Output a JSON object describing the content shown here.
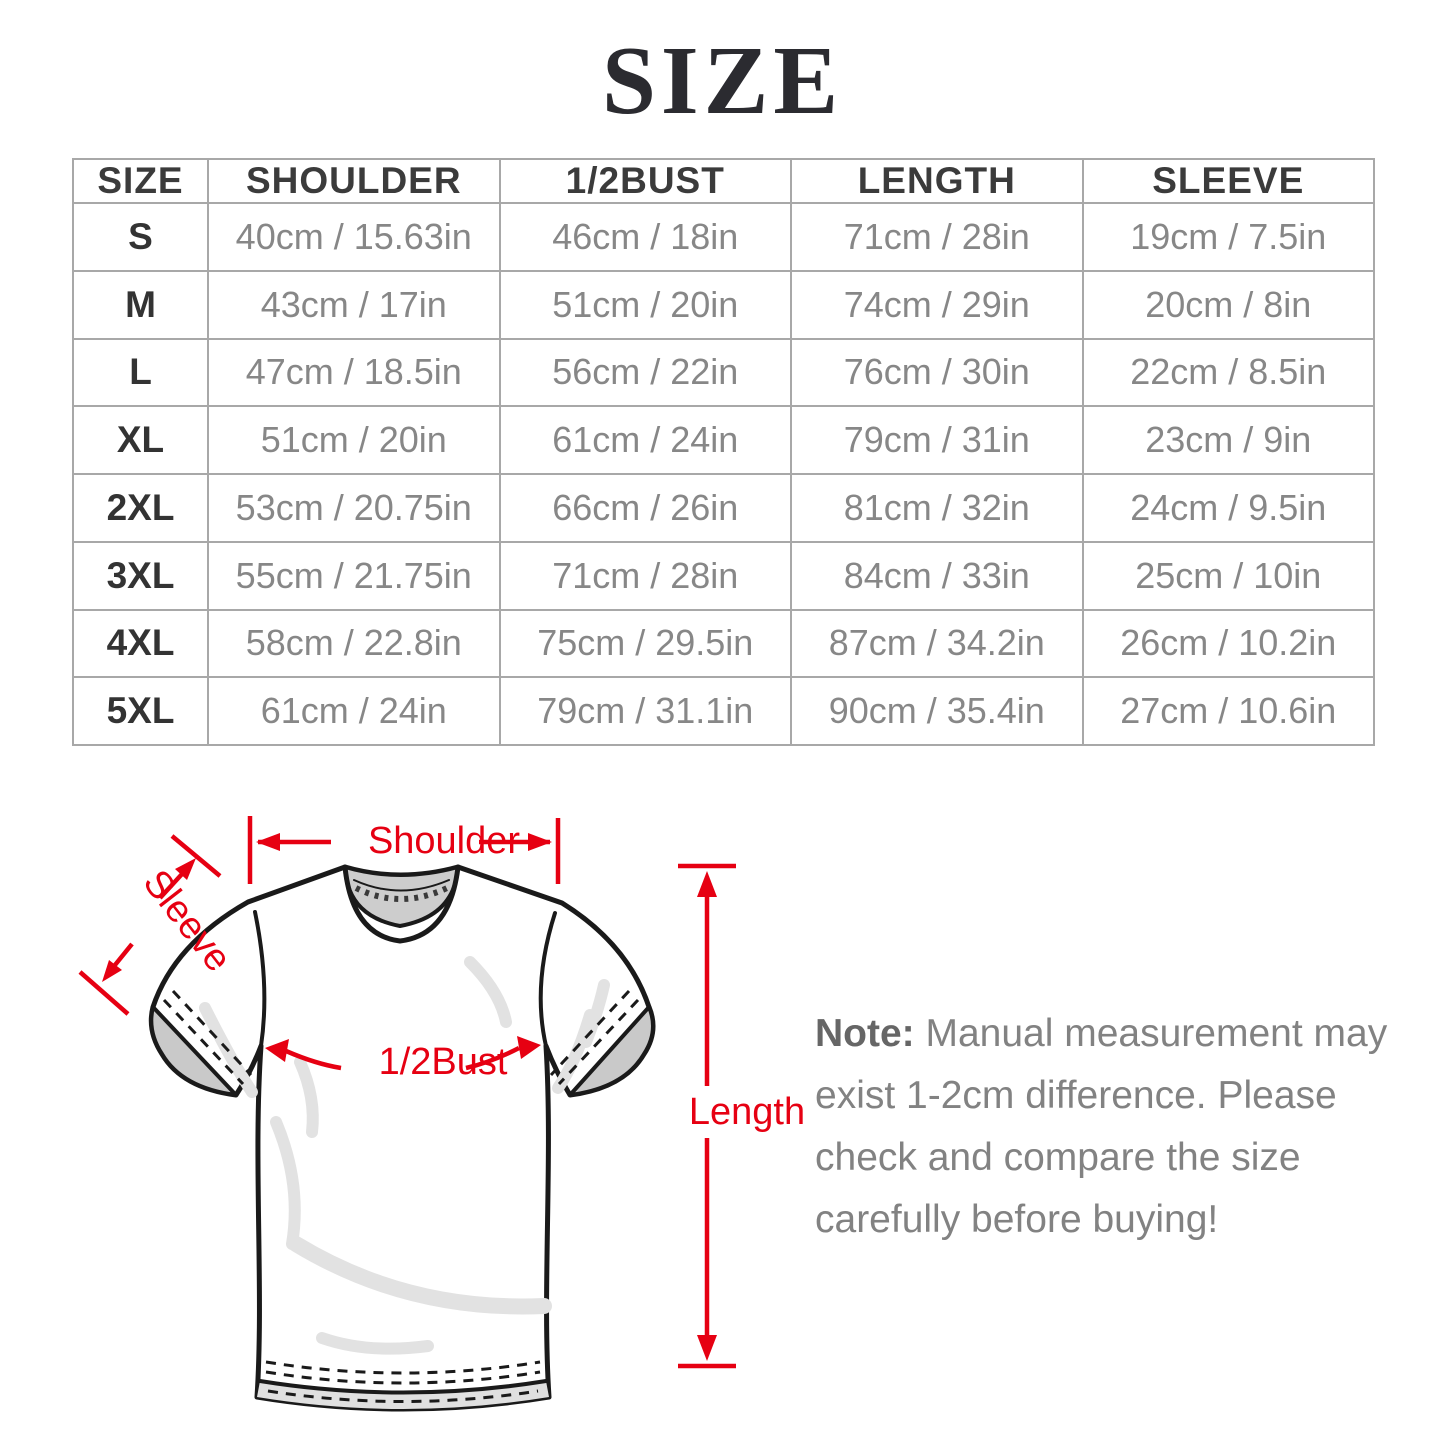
{
  "title": "SIZE",
  "table": {
    "headers": [
      "SIZE",
      "SHOULDER",
      "1/2BUST",
      "LENGTH",
      "SLEEVE"
    ],
    "rows": [
      [
        "S",
        "40cm / 15.63in",
        "46cm / 18in",
        "71cm / 28in",
        "19cm / 7.5in"
      ],
      [
        "M",
        "43cm / 17in",
        "51cm / 20in",
        "74cm / 29in",
        "20cm / 8in"
      ],
      [
        "L",
        "47cm / 18.5in",
        "56cm / 22in",
        "76cm / 30in",
        "22cm / 8.5in"
      ],
      [
        "XL",
        "51cm / 20in",
        "61cm / 24in",
        "79cm / 31in",
        "23cm / 9in"
      ],
      [
        "2XL",
        "53cm / 20.75in",
        "66cm / 26in",
        "81cm / 32in",
        "24cm / 9.5in"
      ],
      [
        "3XL",
        "55cm / 21.75in",
        "71cm / 28in",
        "84cm / 33in",
        "25cm / 10in"
      ],
      [
        "4XL",
        "58cm / 22.8in",
        "75cm / 29.5in",
        "87cm / 34.2in",
        "26cm / 10.2in"
      ],
      [
        "5XL",
        "61cm / 24in",
        "79cm / 31.1in",
        "90cm / 35.4in",
        "27cm / 10.6in"
      ]
    ]
  },
  "diagram": {
    "labels": {
      "shoulder": "Shoulder",
      "sleeve": "Sleeve",
      "bust": "1/2Bust",
      "length": "Length"
    },
    "accent_color": "#e60012"
  },
  "note": {
    "label": "Note:",
    "text": " Manual measurement may exist 1-2cm difference. Please check and compare the size carefully before buying!"
  }
}
